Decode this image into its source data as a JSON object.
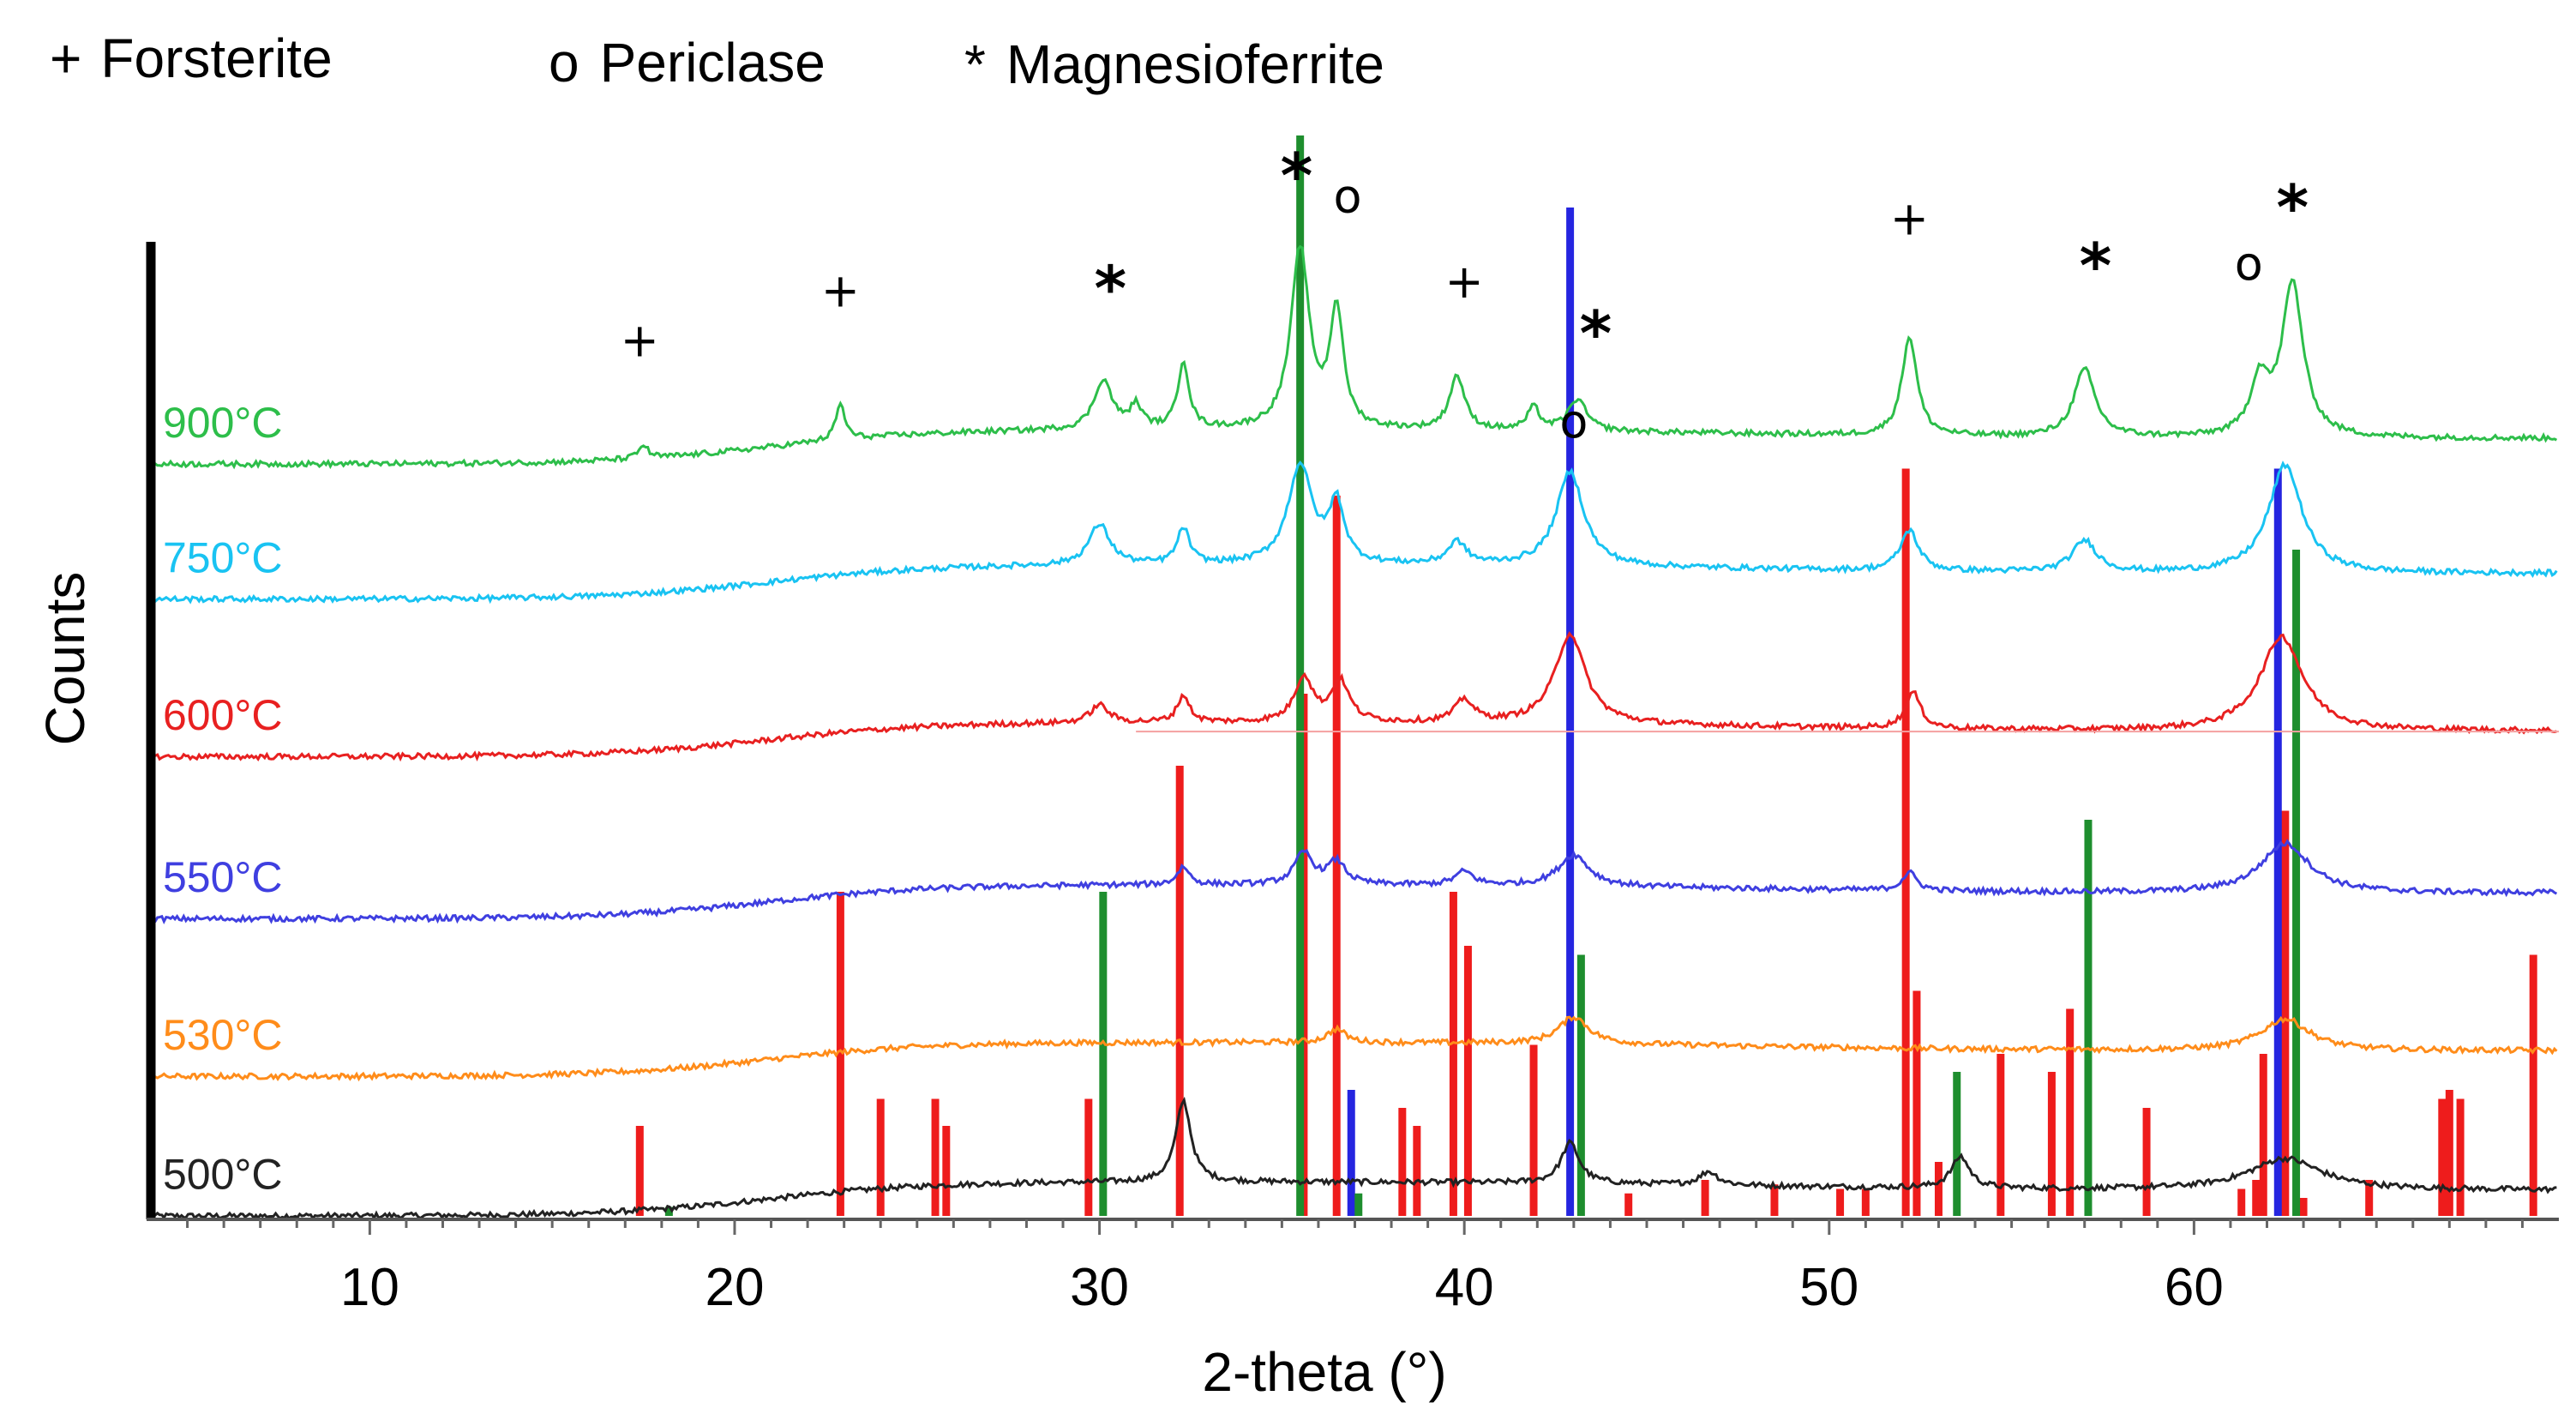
{
  "legend": [
    {
      "symbol": "+",
      "label": "Forsterite"
    },
    {
      "symbol": "o",
      "label": "Periclase"
    },
    {
      "symbol": "*",
      "label": "Magnesioferrite"
    }
  ],
  "chart_data": {
    "type": "line",
    "title": "",
    "xlabel": "2-theta (°)",
    "ylabel": "Counts",
    "xlim": [
      4,
      70
    ],
    "x_ticks": [
      10,
      20,
      30,
      40,
      50,
      60
    ],
    "grid": false,
    "series": [
      {
        "name": "500°C",
        "color": "#222222",
        "offset": 0.0,
        "peaks": [
          [
            32.3,
            0.9,
            0.25
          ],
          [
            42.9,
            0.45,
            0.3
          ],
          [
            53.6,
            0.35,
            0.3
          ],
          [
            46.7,
            0.15,
            0.3
          ],
          [
            62.5,
            0.35,
            1.2
          ]
        ]
      },
      {
        "name": "530°C",
        "color": "#FF8C1A",
        "offset": 1.55,
        "peaks": [
          [
            43,
            0.3,
            0.5
          ],
          [
            62.5,
            0.35,
            0.8
          ],
          [
            36.5,
            0.15,
            0.3
          ]
        ]
      },
      {
        "name": "550°C",
        "color": "#3F3FE0",
        "offset": 3.3,
        "peaks": [
          [
            35.6,
            0.35,
            0.3
          ],
          [
            36.5,
            0.25,
            0.3
          ],
          [
            43,
            0.35,
            0.5
          ],
          [
            62.5,
            0.55,
            0.8
          ],
          [
            32.3,
            0.2,
            0.2
          ],
          [
            40,
            0.15,
            0.3
          ],
          [
            52.2,
            0.2,
            0.25
          ]
        ]
      },
      {
        "name": "600°C",
        "color": "#E82020",
        "offset": 5.1,
        "peaks": [
          [
            35.6,
            0.5,
            0.3
          ],
          [
            36.6,
            0.45,
            0.3
          ],
          [
            42.9,
            1.0,
            0.5
          ],
          [
            62.4,
            1.05,
            0.7
          ],
          [
            52.3,
            0.4,
            0.25
          ],
          [
            40,
            0.25,
            0.3
          ],
          [
            32.3,
            0.3,
            0.2
          ],
          [
            30,
            0.2,
            0.3
          ]
        ]
      },
      {
        "name": "750°C",
        "color": "#19C3F2",
        "offset": 6.85,
        "peaks": [
          [
            35.5,
            1.1,
            0.4
          ],
          [
            36.5,
            0.65,
            0.25
          ],
          [
            42.9,
            1.05,
            0.45
          ],
          [
            62.5,
            1.2,
            0.55
          ],
          [
            30,
            0.45,
            0.35
          ],
          [
            32.3,
            0.4,
            0.2
          ],
          [
            52.2,
            0.45,
            0.3
          ],
          [
            57,
            0.35,
            0.4
          ],
          [
            39.8,
            0.25,
            0.3
          ]
        ]
      },
      {
        "name": "900°C",
        "color": "#2DBE4A",
        "offset": 8.35,
        "peaks": [
          [
            35.5,
            2.0,
            0.3
          ],
          [
            36.5,
            1.3,
            0.22
          ],
          [
            62.7,
            1.7,
            0.35
          ],
          [
            61.8,
            0.6,
            0.3
          ],
          [
            52.2,
            1.1,
            0.25
          ],
          [
            57,
            0.75,
            0.35
          ],
          [
            32.3,
            0.75,
            0.18
          ],
          [
            30.1,
            0.55,
            0.3
          ],
          [
            39.8,
            0.6,
            0.25
          ],
          [
            43.1,
            0.35,
            0.3
          ],
          [
            22.9,
            0.4,
            0.15
          ],
          [
            17.5,
            0.15,
            0.15
          ],
          [
            31,
            0.25,
            0.2
          ],
          [
            41.9,
            0.25,
            0.2
          ]
        ]
      }
    ],
    "reference_patterns": [
      {
        "name": "Forsterite",
        "color": "#EE1C1C",
        "sticks": [
          [
            17.4,
            1.0
          ],
          [
            22.9,
            3.6
          ],
          [
            24.0,
            1.3
          ],
          [
            25.5,
            1.3
          ],
          [
            25.8,
            1.0
          ],
          [
            29.7,
            1.3
          ],
          [
            32.2,
            5.0
          ],
          [
            35.6,
            5.8
          ],
          [
            36.5,
            8.0
          ],
          [
            38.3,
            1.2
          ],
          [
            38.7,
            1.0
          ],
          [
            39.7,
            3.6
          ],
          [
            40.1,
            3.0
          ],
          [
            41.9,
            1.9
          ],
          [
            44.5,
            0.25
          ],
          [
            46.6,
            0.4
          ],
          [
            48.5,
            0.35
          ],
          [
            50.3,
            0.3
          ],
          [
            51.0,
            0.3
          ],
          [
            52.1,
            8.3
          ],
          [
            52.4,
            2.5
          ],
          [
            53.0,
            0.6
          ],
          [
            54.7,
            1.8
          ],
          [
            56.1,
            1.6
          ],
          [
            56.6,
            2.3
          ],
          [
            58.7,
            1.2
          ],
          [
            61.3,
            0.3
          ],
          [
            61.7,
            0.4
          ],
          [
            61.9,
            1.8
          ],
          [
            62.5,
            4.5
          ],
          [
            63.0,
            0.2
          ],
          [
            64.8,
            0.4
          ],
          [
            66.8,
            1.3
          ],
          [
            67.0,
            1.4
          ],
          [
            67.3,
            1.3
          ],
          [
            69.3,
            2.9
          ]
        ]
      },
      {
        "name": "Periclase",
        "color": "#2525E0",
        "sticks": [
          [
            36.9,
            1.4
          ],
          [
            42.9,
            11.2
          ],
          [
            62.3,
            8.3
          ]
        ]
      },
      {
        "name": "Magnesioferrite",
        "color": "#1E8E2E",
        "sticks": [
          [
            18.2,
            0.1
          ],
          [
            30.1,
            3.6
          ],
          [
            35.5,
            12.0
          ],
          [
            37.1,
            0.25
          ],
          [
            43.2,
            2.9
          ],
          [
            53.5,
            1.6
          ],
          [
            57.1,
            4.4
          ],
          [
            62.8,
            7.4
          ]
        ]
      }
    ],
    "peak_annotations": [
      {
        "symbol": "+",
        "x": 17.4,
        "y": 9.55
      },
      {
        "symbol": "+",
        "x": 22.9,
        "y": 10.1
      },
      {
        "symbol": "*",
        "x": 30.3,
        "y": 10.35
      },
      {
        "symbol": "*",
        "x": 35.4,
        "y": 11.6
      },
      {
        "symbol": "o",
        "x": 36.8,
        "y": 11.15
      },
      {
        "symbol": "+",
        "x": 40.0,
        "y": 10.2
      },
      {
        "symbol": "*",
        "x": 43.6,
        "y": 9.85
      },
      {
        "symbol": "o",
        "x": 43.0,
        "y": 8.65
      },
      {
        "symbol": "+",
        "x": 52.2,
        "y": 10.9
      },
      {
        "symbol": "*",
        "x": 57.3,
        "y": 10.6
      },
      {
        "symbol": "o",
        "x": 61.5,
        "y": 10.4
      },
      {
        "symbol": "*",
        "x": 62.7,
        "y": 11.25
      }
    ]
  }
}
